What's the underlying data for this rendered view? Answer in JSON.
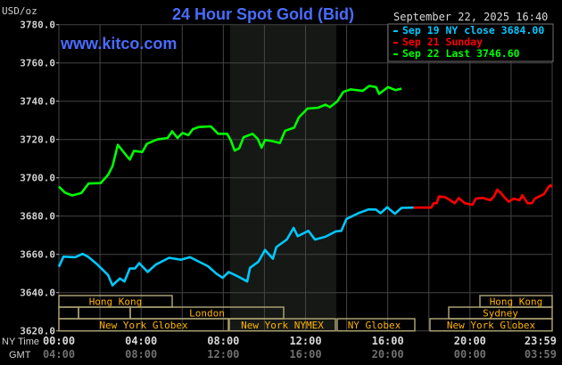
{
  "chart_data": {
    "type": "line",
    "title": "24 Hour Spot Gold (Bid)",
    "watermark": "www.kitco.com",
    "ylabel": "USD/oz",
    "timestamp": "September 22, 2025 16:40",
    "ylim": [
      3620,
      3780
    ],
    "xlim_hours": [
      0,
      24
    ],
    "grid": true,
    "legend_position": "top-right",
    "y_ticks": [
      "3780.0",
      "3760.0",
      "3740.0",
      "3720.0",
      "3700.0",
      "3680.0",
      "3660.0",
      "3640.0",
      "3620.0"
    ],
    "x_axis": {
      "ny_label": "NY Time",
      "gmt_label": "GMT",
      "ny_ticks": [
        "00:00",
        "04:00",
        "08:00",
        "12:00",
        "16:00",
        "20:00",
        "23:59"
      ],
      "gmt_ticks": [
        "04:00",
        "08:00",
        "12:00",
        "16:00",
        "20:00",
        "00:00",
        "03:59"
      ]
    },
    "sessions": {
      "row1": [
        "Hong Kong",
        "Hong Kong"
      ],
      "row2": [
        "London",
        "Sydney"
      ],
      "row3": [
        "New York Globex",
        "New York NYMEX",
        "NY Globex",
        "New York Globex"
      ]
    },
    "series": [
      {
        "name": "Sep 19 NY close 3684.00",
        "color": "#00c8ff",
        "points": [
          [
            0,
            3653.5
          ],
          [
            0.22,
            3658.8
          ],
          [
            0.8,
            3658.5
          ],
          [
            1.16,
            3660.3
          ],
          [
            1.45,
            3658.5
          ],
          [
            1.88,
            3654.6
          ],
          [
            2.1,
            3652.3
          ],
          [
            2.39,
            3649.2
          ],
          [
            2.61,
            3643.8
          ],
          [
            2.97,
            3647.4
          ],
          [
            3.19,
            3645.8
          ],
          [
            3.45,
            3652.6
          ],
          [
            3.7,
            3652.6
          ],
          [
            3.91,
            3655.4
          ],
          [
            4.32,
            3650.8
          ],
          [
            4.71,
            3654.6
          ],
          [
            5.36,
            3658.2
          ],
          [
            5.94,
            3657.2
          ],
          [
            6.38,
            3658.5
          ],
          [
            6.81,
            3656.2
          ],
          [
            7.25,
            3653.8
          ],
          [
            7.65,
            3650
          ],
          [
            7.97,
            3647.7
          ],
          [
            8.26,
            3650.8
          ],
          [
            8.7,
            3648.5
          ],
          [
            9.16,
            3645.8
          ],
          [
            9.3,
            3653
          ],
          [
            9.71,
            3656.2
          ],
          [
            10.03,
            3662.3
          ],
          [
            10.41,
            3657.7
          ],
          [
            10.58,
            3663.8
          ],
          [
            11.09,
            3667.7
          ],
          [
            11.42,
            3673.8
          ],
          [
            11.62,
            3669.5
          ],
          [
            12.14,
            3672.3
          ],
          [
            12.46,
            3667.7
          ],
          [
            12.97,
            3669.2
          ],
          [
            13.48,
            3672
          ],
          [
            13.74,
            3672.3
          ],
          [
            13.99,
            3678.5
          ],
          [
            14.57,
            3681.5
          ],
          [
            15.07,
            3683.5
          ],
          [
            15.43,
            3683.4
          ],
          [
            15.65,
            3681.5
          ],
          [
            15.97,
            3684.6
          ],
          [
            16.35,
            3681.2
          ],
          [
            16.67,
            3684.3
          ],
          [
            17.25,
            3684.4
          ]
        ]
      },
      {
        "name": "Sep 21 Sunday",
        "color": "#ff0000",
        "points": [
          [
            17.25,
            3684.4
          ],
          [
            18.12,
            3684.4
          ],
          [
            18.23,
            3686.7
          ],
          [
            18.38,
            3686.7
          ],
          [
            18.49,
            3690.3
          ],
          [
            18.81,
            3689.8
          ],
          [
            19.03,
            3688.3
          ],
          [
            19.25,
            3686.7
          ],
          [
            19.46,
            3689.4
          ],
          [
            19.75,
            3686.7
          ],
          [
            20.12,
            3685.9
          ],
          [
            20.29,
            3689.1
          ],
          [
            20.62,
            3689.5
          ],
          [
            20.99,
            3688.3
          ],
          [
            21.14,
            3689.8
          ],
          [
            21.33,
            3693.8
          ],
          [
            21.49,
            3692.2
          ],
          [
            21.68,
            3689.8
          ],
          [
            21.88,
            3687.5
          ],
          [
            22.12,
            3689.1
          ],
          [
            22.41,
            3688.3
          ],
          [
            22.55,
            3690.9
          ],
          [
            22.8,
            3686.7
          ],
          [
            23.01,
            3686.7
          ],
          [
            23.16,
            3689.1
          ],
          [
            23.59,
            3691.4
          ],
          [
            23.81,
            3695
          ],
          [
            23.91,
            3696.1
          ],
          [
            24,
            3695.3
          ]
        ]
      },
      {
        "name": "Sep 22 Last 3746.60",
        "color": "#00ff00",
        "points": [
          [
            0,
            3695.4
          ],
          [
            0.29,
            3692.3
          ],
          [
            0.65,
            3690.8
          ],
          [
            1.09,
            3692
          ],
          [
            1.45,
            3697
          ],
          [
            2.03,
            3697.2
          ],
          [
            2.39,
            3701.5
          ],
          [
            2.61,
            3706
          ],
          [
            2.87,
            3717.2
          ],
          [
            3.12,
            3713.8
          ],
          [
            3.45,
            3709.5
          ],
          [
            3.65,
            3714
          ],
          [
            4.06,
            3713.5
          ],
          [
            4.28,
            3717.7
          ],
          [
            4.78,
            3720
          ],
          [
            5.29,
            3720.8
          ],
          [
            5.51,
            3724.3
          ],
          [
            5.77,
            3720.8
          ],
          [
            6.01,
            3723.4
          ],
          [
            6.3,
            3722.3
          ],
          [
            6.52,
            3725.4
          ],
          [
            6.81,
            3726.5
          ],
          [
            7.39,
            3726.9
          ],
          [
            7.75,
            3723
          ],
          [
            8.19,
            3723
          ],
          [
            8.38,
            3719.2
          ],
          [
            8.55,
            3714.2
          ],
          [
            8.77,
            3715.4
          ],
          [
            8.99,
            3721.2
          ],
          [
            9.42,
            3723
          ],
          [
            9.68,
            3720.3
          ],
          [
            9.86,
            3715.7
          ],
          [
            10.03,
            3719.7
          ],
          [
            10.36,
            3719.2
          ],
          [
            10.75,
            3718.2
          ],
          [
            11.01,
            3724.6
          ],
          [
            11.45,
            3726.2
          ],
          [
            11.67,
            3731.5
          ],
          [
            12.1,
            3736.2
          ],
          [
            12.61,
            3736.6
          ],
          [
            12.97,
            3738.2
          ],
          [
            13.19,
            3736.9
          ],
          [
            13.55,
            3740
          ],
          [
            13.84,
            3744.9
          ],
          [
            14.2,
            3746.2
          ],
          [
            14.78,
            3745.4
          ],
          [
            15.1,
            3748
          ],
          [
            15.43,
            3747.4
          ],
          [
            15.58,
            3743.8
          ],
          [
            16.01,
            3747.4
          ],
          [
            16.38,
            3745.8
          ],
          [
            16.67,
            3746.6
          ]
        ]
      }
    ]
  }
}
